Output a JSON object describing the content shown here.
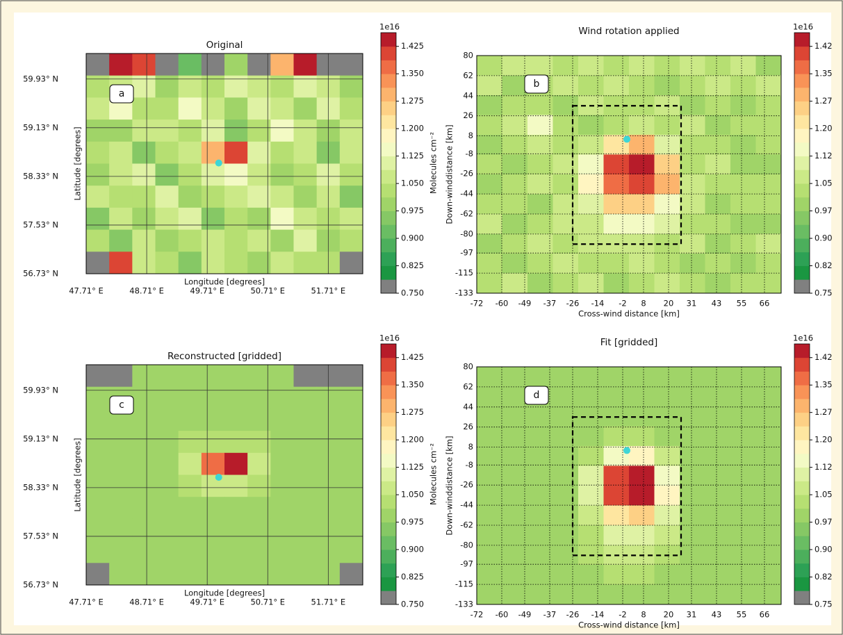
{
  "chart_data": [
    {
      "type": "heatmap",
      "title": "Original",
      "panel_label": "a",
      "xlabel": "Longitude [degrees]",
      "ylabel": "Latitude [degrees]",
      "xlim": [
        47.71,
        52.28
      ],
      "ylim": [
        56.73,
        60.35
      ],
      "xticks": [
        {
          "value": 47.71,
          "label": "47.71° E"
        },
        {
          "value": 48.71,
          "label": "48.71° E"
        },
        {
          "value": 49.71,
          "label": "49.71° E"
        },
        {
          "value": 50.71,
          "label": "50.71° E"
        },
        {
          "value": 51.71,
          "label": "51.71° E"
        }
      ],
      "yticks": [
        {
          "value": 56.73,
          "label": "56.73° N"
        },
        {
          "value": 57.53,
          "label": "57.53° N"
        },
        {
          "value": 58.33,
          "label": "58.33° N"
        },
        {
          "value": 59.13,
          "label": "59.13° N"
        },
        {
          "value": 59.93,
          "label": "59.93° N"
        }
      ],
      "grid": "solid",
      "z": [
        [
          0.76,
          1.45,
          1.42,
          0.76,
          0.93,
          0.76,
          0.98,
          0.76,
          1.3,
          1.46,
          0.76,
          0.76
        ],
        [
          1.02,
          1.06,
          1.1,
          1.0,
          1.08,
          1.04,
          1.12,
          1.05,
          1.03,
          1.1,
          1.06,
          0.99
        ],
        [
          1.06,
          1.13,
          1.02,
          1.04,
          1.16,
          1.07,
          1.01,
          1.09,
          1.05,
          0.98,
          1.12,
          1.04
        ],
        [
          1.01,
          0.98,
          1.08,
          1.05,
          1.03,
          1.1,
          0.96,
          1.04,
          1.14,
          1.06,
          1.0,
          1.08
        ],
        [
          1.04,
          1.07,
          0.95,
          1.02,
          1.06,
          1.3,
          1.4,
          1.12,
          1.03,
          1.07,
          0.97,
          1.05
        ],
        [
          0.99,
          1.05,
          1.09,
          0.97,
          1.04,
          1.12,
          1.15,
          1.06,
          0.99,
          1.04,
          1.09,
          1.02
        ],
        [
          1.07,
          1.02,
          1.04,
          1.1,
          0.98,
          1.03,
          1.07,
          1.11,
          1.05,
          1.0,
          1.06,
          0.97
        ],
        [
          0.96,
          1.08,
          1.01,
          1.05,
          1.09,
          0.97,
          1.04,
          0.99,
          1.13,
          1.06,
          1.03,
          1.08
        ],
        [
          1.03,
          0.97,
          1.06,
          1.0,
          1.04,
          1.08,
          1.02,
          1.05,
          0.98,
          1.09,
          1.01,
          1.04
        ],
        [
          0.76,
          1.4,
          1.05,
          1.02,
          0.97,
          1.06,
          1.03,
          1.0,
          1.07,
          1.02,
          1.04,
          0.76
        ]
      ],
      "marker": {
        "x": 49.9,
        "y": 58.55,
        "color": "#3ed6d6"
      },
      "colorbar": {
        "lim": [
          0.75,
          1.4625
        ],
        "offset_label": "1e16",
        "label": "Molecules cm⁻²",
        "ticks": [
          {
            "value": 0.75,
            "label": "0.750"
          },
          0.825,
          {
            "value": 0.9,
            "label": "0.900"
          },
          0.975,
          {
            "value": 1.05,
            "label": "1.050"
          },
          1.125,
          {
            "value": 1.2,
            "label": "1.200"
          },
          1.275,
          {
            "value": 1.35,
            "label": "1.350"
          },
          1.425
        ],
        "colors": [
          "#808080",
          "#1a9641",
          "#2da155",
          "#4caf5c",
          "#6abd63",
          "#86c865",
          "#a0d468",
          "#b6df72",
          "#cbe987",
          "#dff2a4",
          "#f3fac4",
          "#fff5c1",
          "#fee6a0",
          "#fdd085",
          "#fcb46d",
          "#f99357",
          "#ef6d45",
          "#dc4534",
          "#b71c2a"
        ]
      }
    },
    {
      "type": "heatmap",
      "title": "Wind rotation applied",
      "panel_label": "b",
      "xlabel": "Cross-wind distance [km]",
      "ylabel": "Down-winddistance [km]",
      "xlim": [
        -72,
        74
      ],
      "ylim": [
        -133,
        80
      ],
      "xticks": [
        -72,
        -60,
        -49,
        -37,
        -26,
        -14,
        -2,
        8,
        20,
        31,
        43,
        55,
        66
      ],
      "yticks": [
        80,
        62,
        44,
        26,
        8,
        -8,
        -26,
        -44,
        -62,
        -80,
        -97,
        -115,
        -133
      ],
      "grid": "dotted",
      "z": [
        [
          1.02,
          1.05,
          1.08,
          1.03,
          1.06,
          1.04,
          1.07,
          1.02,
          1.05,
          1.03,
          1.06,
          1.01
        ],
        [
          1.06,
          1.01,
          1.04,
          1.07,
          1.02,
          1.05,
          1.03,
          1.0,
          1.04,
          1.07,
          1.02,
          1.05
        ],
        [
          1.0,
          1.04,
          1.02,
          0.99,
          1.05,
          1.02,
          1.04,
          1.06,
          1.01,
          1.03,
          0.99,
          1.04
        ],
        [
          1.04,
          1.08,
          1.14,
          1.03,
          1.01,
          1.04,
          1.06,
          1.02,
          1.05,
          1.0,
          1.04,
          1.02
        ],
        [
          1.01,
          1.03,
          1.05,
          1.02,
          1.08,
          1.22,
          1.3,
          1.1,
          1.03,
          1.02,
          0.98,
          1.03
        ],
        [
          1.03,
          0.99,
          1.04,
          1.06,
          1.15,
          1.4,
          1.45,
          1.25,
          1.04,
          1.05,
          1.01,
          0.99
        ],
        [
          0.98,
          1.02,
          1.05,
          1.03,
          1.18,
          1.38,
          1.4,
          1.28,
          1.06,
          1.02,
          1.04,
          1.02
        ],
        [
          1.02,
          1.04,
          1.01,
          1.05,
          1.12,
          1.24,
          1.26,
          1.16,
          1.05,
          0.99,
          1.02,
          1.04
        ],
        [
          1.05,
          1.01,
          1.03,
          1.06,
          1.08,
          1.14,
          1.15,
          1.1,
          1.03,
          1.04,
          0.98,
          1.01
        ],
        [
          1.01,
          1.04,
          1.06,
          1.02,
          1.05,
          1.08,
          1.07,
          1.04,
          1.06,
          1.01,
          1.03,
          1.05
        ],
        [
          1.04,
          1.0,
          1.03,
          1.05,
          1.02,
          1.04,
          1.06,
          1.02,
          0.98,
          1.04,
          1.01,
          1.03
        ],
        [
          1.02,
          1.05,
          1.01,
          1.03,
          1.06,
          1.01,
          1.03,
          1.05,
          1.02,
          1.0,
          1.04,
          1.02
        ]
      ],
      "marker": {
        "x": 0,
        "y": 5,
        "color": "#3ed6d6"
      },
      "box": {
        "x": [
          -26,
          26
        ],
        "y": [
          -89,
          35
        ]
      },
      "colorbar": {
        "lim": [
          0.75,
          1.4625
        ],
        "offset_label": "1e16",
        "ticks": [
          0.75,
          {
            "value": 0.825,
            "label": "0.82"
          },
          {
            "value": 0.9,
            "label": "0.90"
          },
          {
            "value": 0.975,
            "label": "0.97"
          },
          1.05,
          {
            "value": 1.125,
            "label": "1.12"
          },
          {
            "value": 1.2,
            "label": "1.20"
          },
          {
            "value": 1.275,
            "label": "1.27"
          },
          1.35,
          {
            "value": 1.425,
            "label": "1.42"
          }
        ],
        "colors": [
          "#808080",
          "#1a9641",
          "#2da155",
          "#4caf5c",
          "#6abd63",
          "#86c865",
          "#a0d468",
          "#b6df72",
          "#cbe987",
          "#dff2a4",
          "#f3fac4",
          "#fff5c1",
          "#fee6a0",
          "#fdd085",
          "#fcb46d",
          "#f99357",
          "#ef6d45",
          "#dc4534",
          "#b71c2a"
        ]
      }
    },
    {
      "type": "heatmap",
      "title": "Reconstructed [gridded]",
      "panel_label": "c",
      "xlabel": "Longitude [degrees]",
      "ylabel": "Latitude [degrees]",
      "xlim": [
        47.71,
        52.28
      ],
      "ylim": [
        56.73,
        60.35
      ],
      "xticks": [
        {
          "value": 47.71,
          "label": "47.71° E"
        },
        {
          "value": 48.71,
          "label": "48.71° E"
        },
        {
          "value": 49.71,
          "label": "49.71° E"
        },
        {
          "value": 50.71,
          "label": "50.71° E"
        },
        {
          "value": 51.71,
          "label": "51.71° E"
        }
      ],
      "yticks": [
        {
          "value": 56.73,
          "label": "56.73° N"
        },
        {
          "value": 57.53,
          "label": "57.53° N"
        },
        {
          "value": 58.33,
          "label": "58.33° N"
        },
        {
          "value": 59.13,
          "label": "59.13° N"
        },
        {
          "value": 59.93,
          "label": "59.93° N"
        }
      ],
      "grid": "solid",
      "z": [
        [
          0.76,
          0.76,
          1.0,
          1.0,
          1.0,
          1.0,
          1.0,
          1.0,
          1.0,
          0.76,
          0.76,
          0.76
        ],
        [
          1.0,
          1.0,
          1.0,
          1.0,
          1.0,
          1.0,
          1.0,
          1.0,
          1.0,
          1.0,
          1.0,
          1.0
        ],
        [
          1.0,
          1.0,
          1.0,
          1.0,
          1.0,
          1.0,
          1.0,
          1.0,
          1.0,
          1.0,
          1.0,
          1.0
        ],
        [
          1.0,
          1.0,
          1.0,
          1.0,
          1.02,
          1.04,
          1.04,
          1.02,
          1.0,
          1.0,
          1.0,
          1.0
        ],
        [
          1.0,
          1.0,
          1.0,
          1.0,
          1.06,
          1.38,
          1.45,
          1.06,
          1.0,
          1.0,
          1.0,
          1.0
        ],
        [
          1.0,
          1.0,
          1.0,
          1.0,
          1.02,
          1.05,
          1.05,
          1.02,
          1.0,
          1.0,
          1.0,
          1.0
        ],
        [
          1.0,
          1.0,
          1.0,
          1.0,
          1.0,
          1.0,
          1.0,
          1.0,
          1.0,
          1.0,
          1.0,
          1.0
        ],
        [
          1.0,
          1.0,
          1.0,
          1.0,
          1.0,
          1.0,
          1.0,
          1.0,
          1.0,
          1.0,
          1.0,
          1.0
        ],
        [
          1.0,
          1.0,
          1.0,
          1.0,
          1.0,
          1.0,
          1.0,
          1.0,
          1.0,
          1.0,
          1.0,
          1.0
        ],
        [
          0.76,
          1.0,
          1.0,
          1.0,
          1.0,
          1.0,
          1.0,
          1.0,
          1.0,
          1.0,
          1.0,
          0.76
        ]
      ],
      "marker": {
        "x": 49.9,
        "y": 58.5,
        "color": "#3ed6d6"
      },
      "colorbar": {
        "lim": [
          0.75,
          1.4625
        ],
        "offset_label": "1e16",
        "label": "Molecules cm⁻²",
        "ticks": [
          {
            "value": 0.75,
            "label": "0.750"
          },
          0.825,
          {
            "value": 0.9,
            "label": "0.900"
          },
          0.975,
          {
            "value": 1.05,
            "label": "1.050"
          },
          1.125,
          {
            "value": 1.2,
            "label": "1.200"
          },
          1.275,
          {
            "value": 1.35,
            "label": "1.350"
          },
          1.425
        ],
        "colors": [
          "#808080",
          "#1a9641",
          "#2da155",
          "#4caf5c",
          "#6abd63",
          "#86c865",
          "#a0d468",
          "#b6df72",
          "#cbe987",
          "#dff2a4",
          "#f3fac4",
          "#fff5c1",
          "#fee6a0",
          "#fdd085",
          "#fcb46d",
          "#f99357",
          "#ef6d45",
          "#dc4534",
          "#b71c2a"
        ]
      }
    },
    {
      "type": "heatmap",
      "title": "Fit [gridded]",
      "panel_label": "d",
      "xlabel": "Cross-wind distance [km]",
      "ylabel": "Down-winddistance [km]",
      "xlim": [
        -72,
        74
      ],
      "ylim": [
        -133,
        80
      ],
      "xticks": [
        -72,
        -60,
        -49,
        -37,
        -26,
        -14,
        -2,
        8,
        20,
        31,
        43,
        55,
        66
      ],
      "yticks": [
        80,
        62,
        44,
        26,
        8,
        -8,
        -26,
        -44,
        -62,
        -80,
        -97,
        -115,
        -133
      ],
      "grid": "dotted",
      "z": [
        [
          1.0,
          1.0,
          1.0,
          1.0,
          1.0,
          1.0,
          1.0,
          1.0,
          1.0,
          1.0,
          1.0,
          1.0
        ],
        [
          1.0,
          1.0,
          1.0,
          1.0,
          1.0,
          1.0,
          1.0,
          1.0,
          1.0,
          1.0,
          1.0,
          1.0
        ],
        [
          1.0,
          1.0,
          1.0,
          1.0,
          1.0,
          1.0,
          1.0,
          1.0,
          1.0,
          1.0,
          1.0,
          1.0
        ],
        [
          1.0,
          1.0,
          1.0,
          1.0,
          1.0,
          1.03,
          1.03,
          1.0,
          1.0,
          1.0,
          1.0,
          1.0
        ],
        [
          1.0,
          1.0,
          1.0,
          1.0,
          1.04,
          1.15,
          1.18,
          1.05,
          1.0,
          1.0,
          1.0,
          1.0
        ],
        [
          1.0,
          1.0,
          1.0,
          1.0,
          1.1,
          1.4,
          1.45,
          1.15,
          1.0,
          1.0,
          1.0,
          1.0
        ],
        [
          1.0,
          1.0,
          1.0,
          1.0,
          1.12,
          1.42,
          1.45,
          1.18,
          1.0,
          1.0,
          1.0,
          1.0
        ],
        [
          1.0,
          1.0,
          1.0,
          1.0,
          1.07,
          1.22,
          1.25,
          1.1,
          1.0,
          1.0,
          1.0,
          1.0
        ],
        [
          1.0,
          1.0,
          1.0,
          1.0,
          1.04,
          1.1,
          1.12,
          1.05,
          1.0,
          1.0,
          1.0,
          1.0
        ],
        [
          1.0,
          1.0,
          1.0,
          1.0,
          1.02,
          1.05,
          1.06,
          1.03,
          1.0,
          1.0,
          1.0,
          1.0
        ],
        [
          1.0,
          1.0,
          1.0,
          1.0,
          1.0,
          1.03,
          1.03,
          1.0,
          1.0,
          1.0,
          1.0,
          1.0
        ],
        [
          1.0,
          1.0,
          1.0,
          1.0,
          1.0,
          1.0,
          1.0,
          1.0,
          1.0,
          1.0,
          1.0,
          1.0
        ]
      ],
      "marker": {
        "x": 0,
        "y": 5,
        "color": "#3ed6d6"
      },
      "box": {
        "x": [
          -26,
          26
        ],
        "y": [
          -89,
          35
        ]
      },
      "colorbar": {
        "lim": [
          0.75,
          1.4625
        ],
        "offset_label": "1e16",
        "ticks": [
          0.75,
          {
            "value": 0.825,
            "label": "0.82"
          },
          {
            "value": 0.9,
            "label": "0.90"
          },
          {
            "value": 0.975,
            "label": "0.97"
          },
          1.05,
          {
            "value": 1.125,
            "label": "1.12"
          },
          {
            "value": 1.2,
            "label": "1.20"
          },
          {
            "value": 1.275,
            "label": "1.27"
          },
          1.35,
          {
            "value": 1.425,
            "label": "1.42"
          }
        ],
        "colors": [
          "#808080",
          "#1a9641",
          "#2da155",
          "#4caf5c",
          "#6abd63",
          "#86c865",
          "#a0d468",
          "#b6df72",
          "#cbe987",
          "#dff2a4",
          "#f3fac4",
          "#fff5c1",
          "#fee6a0",
          "#fdd085",
          "#fcb46d",
          "#f99357",
          "#ef6d45",
          "#dc4534",
          "#b71c2a"
        ]
      }
    }
  ]
}
